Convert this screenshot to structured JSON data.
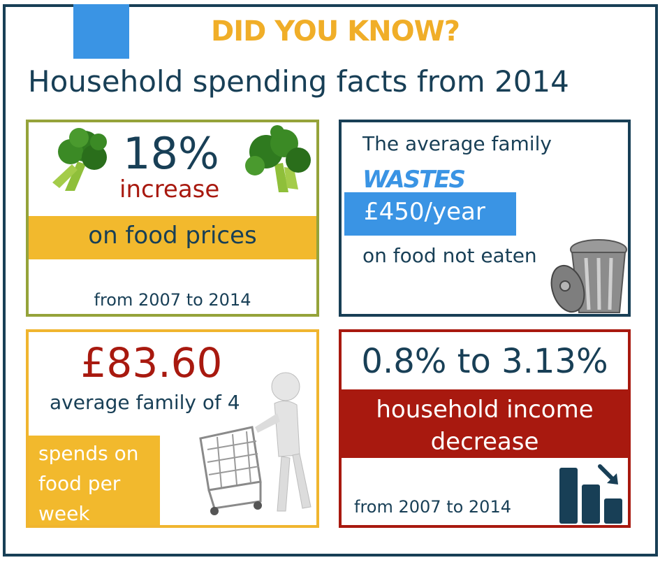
{
  "header": {
    "headline": "DID YOU KNOW?",
    "subtitle": "Household spending facts from 2014"
  },
  "card_food_prices": {
    "percent": "18%",
    "increase": "increase",
    "band": "on food prices",
    "footer": "from 2007 to 2014"
  },
  "card_waste": {
    "intro": "The average family",
    "wastes": "WASTES",
    "amount": "£450/year",
    "footer": "on food not eaten"
  },
  "card_weekly": {
    "amount": "£83.60",
    "subtitle": "average family of 4",
    "band": "spends on food per week"
  },
  "card_income": {
    "range": "0.8% to 3.13%",
    "band": "household income decrease",
    "footer": "from 2007 to 2014"
  },
  "colors": {
    "navy": "#183f56",
    "yellow": "#f0ae28",
    "blue": "#3a94e4",
    "red": "#a8190f",
    "olive": "#95a33a"
  },
  "icons": [
    "broccoli-icon",
    "trash-can-icon",
    "shopping-cart-figure-icon",
    "bar-chart-decrease-icon"
  ]
}
